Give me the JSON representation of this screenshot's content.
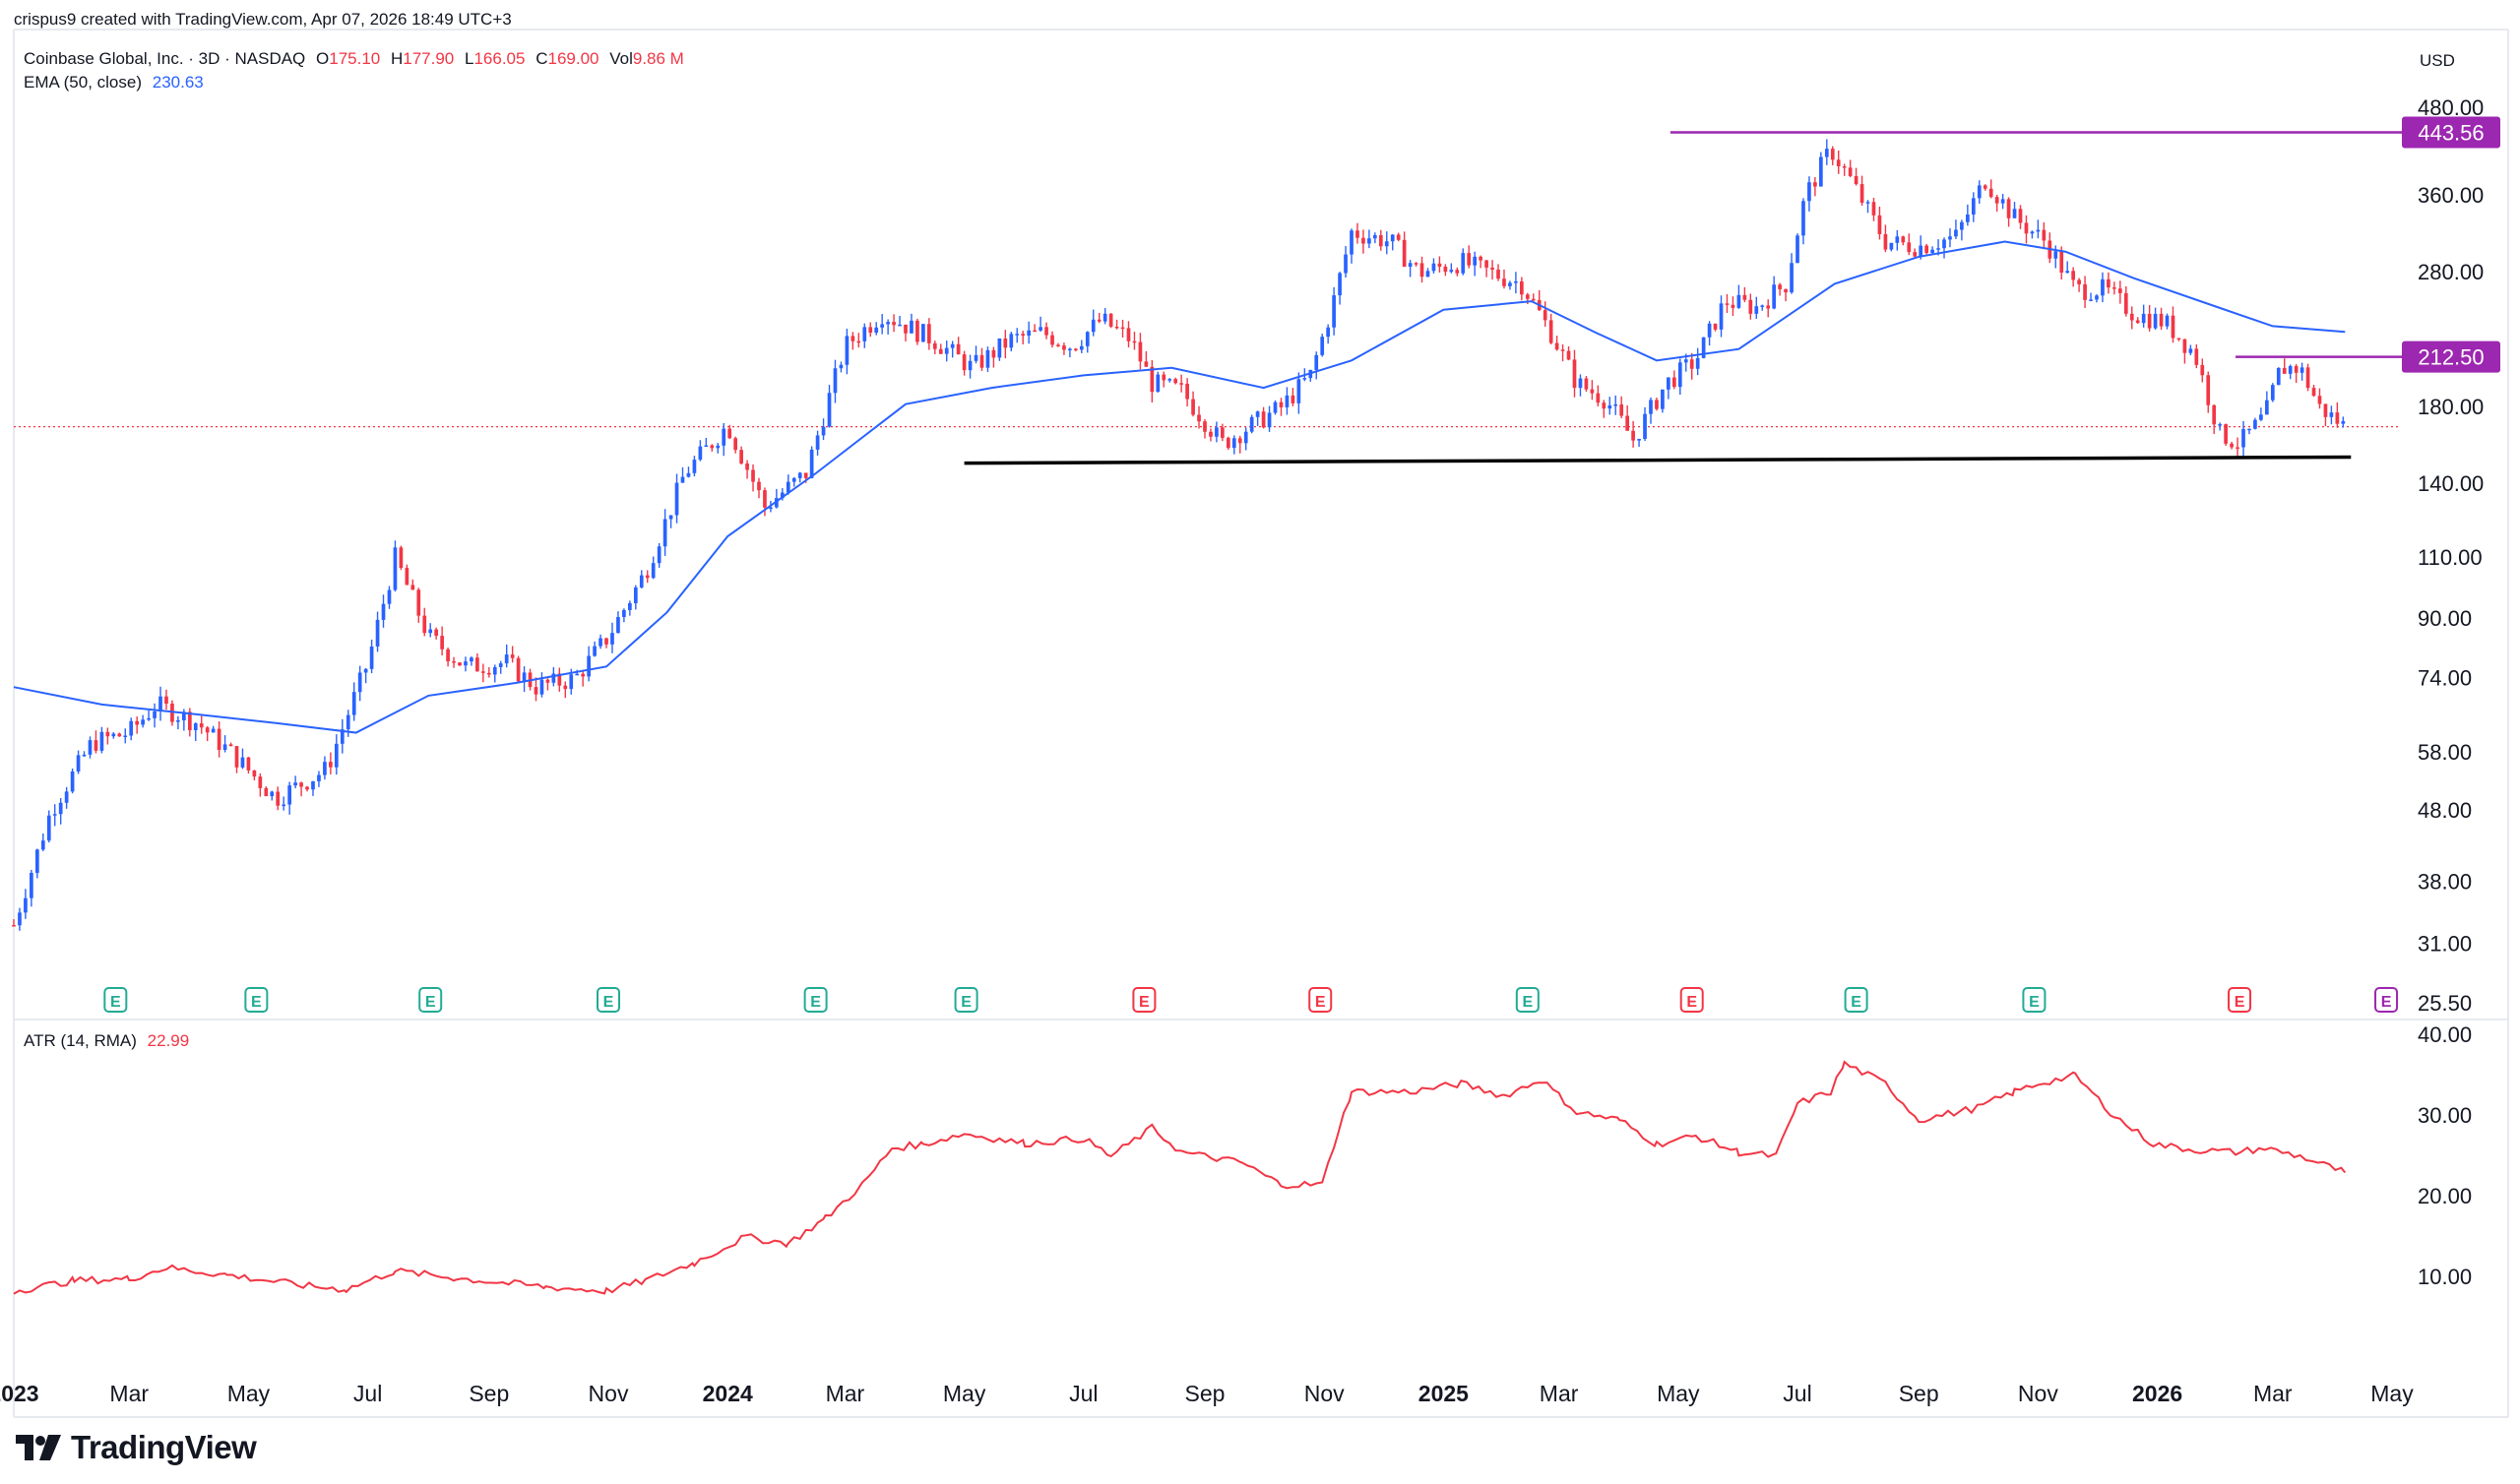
{
  "header": {
    "created_line": "crispus9 created with TradingView.com, Apr 07, 2026 18:49 UTC+3"
  },
  "legend": {
    "symbol": "Coinbase Global, Inc. · 3D · NASDAQ",
    "open_label": "O",
    "open": "175.10",
    "high_label": "H",
    "high": "177.90",
    "low_label": "L",
    "low": "166.05",
    "close_label": "C",
    "close": "169.00",
    "vol_label": "Vol",
    "vol": "9.86 M",
    "ema_label": "EMA (50, close)",
    "ema_value": "230.63"
  },
  "atr_legend": {
    "label": "ATR (14, RMA)",
    "value": "22.99"
  },
  "currency": "USD",
  "brand": {
    "name": "TradingView",
    "icon": "tradingview-logo-icon"
  },
  "colors": {
    "up": "#2962ff",
    "down": "#f23645",
    "ema": "#2962ff",
    "atr": "#f23645",
    "level": "#9c27b0",
    "support": "#000000",
    "grid": "#f0f3fa",
    "axis_text": "#131722"
  },
  "chart_data": [
    {
      "type": "candlestick",
      "title": "Coinbase Global, Inc. · 3D · NASDAQ",
      "scale": "log",
      "ylim": [
        25.5,
        480
      ],
      "y_ticks": [
        "480.00",
        "360.00",
        "280.00",
        "180.00",
        "140.00",
        "110.00",
        "90.00",
        "74.00",
        "58.00",
        "48.00",
        "38.00",
        "31.00",
        "25.50"
      ],
      "x_ticks": [
        "2023",
        "Mar",
        "May",
        "Jul",
        "Sep",
        "Nov",
        "2024",
        "Mar",
        "May",
        "Jul",
        "Sep",
        "Nov",
        "2025",
        "Mar",
        "May",
        "Jul",
        "Sep",
        "Nov",
        "2026",
        "Mar",
        "May"
      ],
      "x_tick_dates": [
        "2023-01-01",
        "2023-03-01",
        "2023-05-01",
        "2023-07-01",
        "2023-09-01",
        "2023-11-01",
        "2024-01-01",
        "2024-03-01",
        "2024-05-01",
        "2024-07-01",
        "2024-09-01",
        "2024-11-01",
        "2025-01-01",
        "2025-03-01",
        "2025-05-01",
        "2025-07-01",
        "2025-09-01",
        "2025-11-01",
        "2026-01-01",
        "2026-03-01",
        "2026-05-01"
      ],
      "x_range": [
        "2023-01-01",
        "2026-05-01"
      ],
      "close_path": [
        [
          "2023-01-01",
          33
        ],
        [
          "2023-01-20",
          48
        ],
        [
          "2023-02-10",
          60
        ],
        [
          "2023-03-01",
          62
        ],
        [
          "2023-03-15",
          68
        ],
        [
          "2023-04-05",
          64
        ],
        [
          "2023-04-25",
          57
        ],
        [
          "2023-05-15",
          50
        ],
        [
          "2023-06-10",
          55
        ],
        [
          "2023-06-20",
          65
        ],
        [
          "2023-07-01",
          78
        ],
        [
          "2023-07-15",
          110
        ],
        [
          "2023-08-01",
          85
        ],
        [
          "2023-08-20",
          77
        ],
        [
          "2023-09-10",
          78
        ],
        [
          "2023-09-25",
          72
        ],
        [
          "2023-10-15",
          74
        ],
        [
          "2023-11-01",
          85
        ],
        [
          "2023-11-20",
          105
        ],
        [
          "2023-12-10",
          145
        ],
        [
          "2024-01-01",
          170
        ],
        [
          "2024-01-20",
          130
        ],
        [
          "2024-02-10",
          145
        ],
        [
          "2024-03-01",
          220
        ],
        [
          "2024-03-20",
          245
        ],
        [
          "2024-04-15",
          225
        ],
        [
          "2024-05-05",
          205
        ],
        [
          "2024-05-25",
          225
        ],
        [
          "2024-06-10",
          230
        ],
        [
          "2024-06-25",
          220
        ],
        [
          "2024-07-10",
          240
        ],
        [
          "2024-07-25",
          225
        ],
        [
          "2024-08-05",
          195
        ],
        [
          "2024-08-20",
          190
        ],
        [
          "2024-09-10",
          160
        ],
        [
          "2024-09-25",
          170
        ],
        [
          "2024-10-10",
          180
        ],
        [
          "2024-10-25",
          200
        ],
        [
          "2024-11-05",
          250
        ],
        [
          "2024-11-15",
          320
        ],
        [
          "2024-12-05",
          310
        ],
        [
          "2024-12-20",
          280
        ],
        [
          "2025-01-10",
          290
        ],
        [
          "2025-01-25",
          280
        ],
        [
          "2025-02-10",
          270
        ],
        [
          "2025-02-25",
          230
        ],
        [
          "2025-03-10",
          195
        ],
        [
          "2025-03-25",
          185
        ],
        [
          "2025-04-08",
          162
        ],
        [
          "2025-04-25",
          195
        ],
        [
          "2025-05-10",
          210
        ],
        [
          "2025-05-25",
          255
        ],
        [
          "2025-06-10",
          250
        ],
        [
          "2025-06-25",
          270
        ],
        [
          "2025-07-05",
          360
        ],
        [
          "2025-07-18",
          420
        ],
        [
          "2025-07-28",
          380
        ],
        [
          "2025-08-15",
          310
        ],
        [
          "2025-09-01",
          305
        ],
        [
          "2025-09-20",
          315
        ],
        [
          "2025-10-05",
          380
        ],
        [
          "2025-10-20",
          335
        ],
        [
          "2025-11-05",
          310
        ],
        [
          "2025-11-20",
          265
        ],
        [
          "2025-12-05",
          265
        ],
        [
          "2025-12-20",
          245
        ],
        [
          "2026-01-05",
          238
        ],
        [
          "2026-01-20",
          215
        ],
        [
          "2026-02-02",
          165
        ],
        [
          "2026-02-12",
          160
        ],
        [
          "2026-02-25",
          175
        ],
        [
          "2026-03-05",
          205
        ],
        [
          "2026-03-15",
          205
        ],
        [
          "2026-03-25",
          180
        ],
        [
          "2026-04-07",
          169
        ]
      ],
      "series": [
        {
          "name": "EMA (50, close)",
          "points": [
            [
              "2023-01-01",
              72
            ],
            [
              "2023-02-15",
              68
            ],
            [
              "2023-04-01",
              66
            ],
            [
              "2023-05-15",
              64
            ],
            [
              "2023-06-25",
              62
            ],
            [
              "2023-08-01",
              70
            ],
            [
              "2023-09-15",
              73
            ],
            [
              "2023-10-31",
              77
            ],
            [
              "2023-12-01",
              92
            ],
            [
              "2024-01-01",
              118
            ],
            [
              "2024-02-15",
              145
            ],
            [
              "2024-04-01",
              182
            ],
            [
              "2024-05-15",
              192
            ],
            [
              "2024-07-01",
              200
            ],
            [
              "2024-08-15",
              205
            ],
            [
              "2024-10-01",
              192
            ],
            [
              "2024-11-15",
              210
            ],
            [
              "2025-01-01",
              248
            ],
            [
              "2025-02-15",
              255
            ],
            [
              "2025-03-20",
              230
            ],
            [
              "2025-04-20",
              210
            ],
            [
              "2025-06-01",
              218
            ],
            [
              "2025-07-20",
              270
            ],
            [
              "2025-09-01",
              295
            ],
            [
              "2025-10-15",
              310
            ],
            [
              "2025-11-15",
              300
            ],
            [
              "2025-12-20",
              275
            ],
            [
              "2026-02-01",
              250
            ],
            [
              "2026-03-01",
              235
            ],
            [
              "2026-04-07",
              230.63
            ]
          ]
        }
      ],
      "levels": [
        {
          "value": 443.56,
          "label": "443.56",
          "from": "2025-04-27",
          "to": "2026-05-10"
        },
        {
          "value": 212.5,
          "label": "212.50",
          "from": "2026-02-10",
          "to": "2026-05-10"
        }
      ],
      "support_line": {
        "from": [
          "2024-05-01",
          150
        ],
        "to": [
          "2026-04-10",
          153
        ]
      },
      "last_price": 169.0,
      "events": [
        {
          "date": "2023-02-22",
          "label": "E",
          "kind": "E"
        },
        {
          "date": "2023-05-05",
          "label": "E",
          "kind": "E"
        },
        {
          "date": "2023-08-02",
          "label": "E",
          "kind": "E"
        },
        {
          "date": "2023-11-01",
          "label": "E",
          "kind": "E"
        },
        {
          "date": "2024-02-15",
          "label": "E",
          "kind": "E"
        },
        {
          "date": "2024-05-02",
          "label": "E",
          "kind": "E"
        },
        {
          "date": "2024-08-01",
          "label": "E",
          "kind": "D"
        },
        {
          "date": "2024-10-30",
          "label": "E",
          "kind": "D"
        },
        {
          "date": "2025-02-13",
          "label": "E",
          "kind": "E"
        },
        {
          "date": "2025-05-08",
          "label": "E",
          "kind": "D"
        },
        {
          "date": "2025-07-31",
          "label": "E",
          "kind": "E"
        },
        {
          "date": "2025-10-30",
          "label": "E",
          "kind": "E"
        },
        {
          "date": "2026-02-12",
          "label": "E",
          "kind": "D"
        },
        {
          "date": "2026-04-28",
          "label": "E",
          "kind": "F"
        }
      ]
    },
    {
      "type": "line",
      "title": "ATR (14, RMA)",
      "ylim": [
        0,
        40
      ],
      "y_ticks": [
        "40.00",
        "30.00",
        "20.00",
        "10.00"
      ],
      "series": [
        {
          "name": "ATR (14, RMA)",
          "points": [
            [
              "2023-01-01",
              8.3
            ],
            [
              "2023-02-01",
              9.6
            ],
            [
              "2023-03-01",
              9.8
            ],
            [
              "2023-03-20",
              11.2
            ],
            [
              "2023-04-20",
              10.3
            ],
            [
              "2023-06-01",
              8.9
            ],
            [
              "2023-06-20",
              8.5
            ],
            [
              "2023-07-15",
              10.8
            ],
            [
              "2023-08-15",
              9.9
            ],
            [
              "2023-09-30",
              8.8
            ],
            [
              "2023-10-31",
              8.3
            ],
            [
              "2023-11-20",
              9.6
            ],
            [
              "2023-12-15",
              11.8
            ],
            [
              "2024-01-10",
              15.0
            ],
            [
              "2024-02-01",
              14.2
            ],
            [
              "2024-02-20",
              17.3
            ],
            [
              "2024-03-10",
              21.5
            ],
            [
              "2024-03-25",
              26.0
            ],
            [
              "2024-04-10",
              26.5
            ],
            [
              "2024-05-01",
              27.8
            ],
            [
              "2024-06-01",
              26.6
            ],
            [
              "2024-07-01",
              27.2
            ],
            [
              "2024-07-15",
              25.0
            ],
            [
              "2024-08-05",
              28.5
            ],
            [
              "2024-08-20",
              25.5
            ],
            [
              "2024-09-20",
              24.2
            ],
            [
              "2024-10-10",
              21.5
            ],
            [
              "2024-10-31",
              21.5
            ],
            [
              "2024-11-08",
              28.0
            ],
            [
              "2024-11-15",
              33.0
            ],
            [
              "2024-12-15",
              33.0
            ],
            [
              "2025-01-10",
              34.0
            ],
            [
              "2025-02-01",
              32.5
            ],
            [
              "2025-02-20",
              34.5
            ],
            [
              "2025-03-10",
              30.5
            ],
            [
              "2025-04-01",
              29.5
            ],
            [
              "2025-04-20",
              26.5
            ],
            [
              "2025-05-10",
              27.5
            ],
            [
              "2025-06-01",
              25.5
            ],
            [
              "2025-06-20",
              25.0
            ],
            [
              "2025-07-01",
              31.5
            ],
            [
              "2025-07-18",
              33.0
            ],
            [
              "2025-07-25",
              36.5
            ],
            [
              "2025-08-15",
              34.0
            ],
            [
              "2025-09-01",
              29.5
            ],
            [
              "2025-10-01",
              31.0
            ],
            [
              "2025-10-20",
              33.0
            ],
            [
              "2025-11-01",
              34.0
            ],
            [
              "2025-11-20",
              35.0
            ],
            [
              "2025-12-10",
              30.0
            ],
            [
              "2025-12-30",
              26.5
            ],
            [
              "2026-01-20",
              25.8
            ],
            [
              "2026-02-10",
              25.5
            ],
            [
              "2026-02-25",
              26.0
            ],
            [
              "2026-03-15",
              25.0
            ],
            [
              "2026-04-07",
              22.99
            ]
          ]
        }
      ]
    }
  ]
}
